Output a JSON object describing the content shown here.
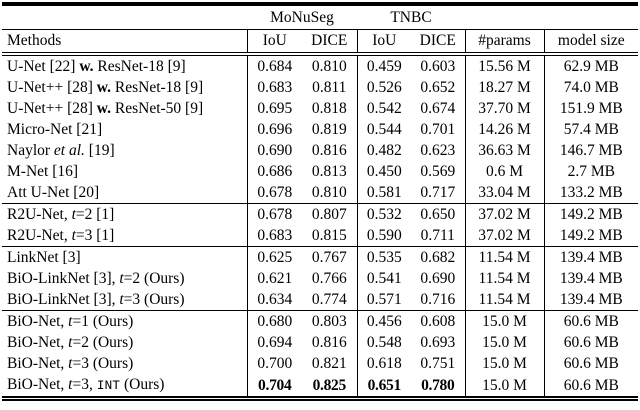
{
  "page": {
    "background_color": "#ffffff",
    "text_color": "#000000"
  },
  "table": {
    "datasets": [
      "MoNuSeg",
      "TNBC"
    ],
    "columns": {
      "methods": "Methods",
      "iou_monuseg": "IoU",
      "dice_monuseg": "DICE",
      "iou_tnbc": "IoU",
      "dice_tnbc": "DICE",
      "params": "#params",
      "model_size": "model size"
    },
    "rows": [
      {
        "method": [
          {
            "t": "U-Net [22] "
          },
          {
            "t": "w.",
            "s": "bold"
          },
          {
            "t": " ResNet-18 [9]"
          }
        ],
        "values": [
          "0.684",
          "0.810",
          "0.459",
          "0.603"
        ],
        "params": "15.56 M",
        "size": "62.9 MB",
        "bold_values": false,
        "group_start": false
      },
      {
        "method": [
          {
            "t": "U-Net++ [28] "
          },
          {
            "t": "w.",
            "s": "bold"
          },
          {
            "t": " ResNet-18 [9]"
          }
        ],
        "values": [
          "0.683",
          "0.811",
          "0.526",
          "0.652"
        ],
        "params": "18.27 M",
        "size": "74.0 MB",
        "bold_values": false,
        "group_start": false
      },
      {
        "method": [
          {
            "t": "U-Net++ [28] "
          },
          {
            "t": "w.",
            "s": "bold"
          },
          {
            "t": " ResNet-50 [9]"
          }
        ],
        "values": [
          "0.695",
          "0.818",
          "0.542",
          "0.674"
        ],
        "params": "37.70 M",
        "size": "151.9 MB",
        "bold_values": false,
        "group_start": false
      },
      {
        "method": [
          {
            "t": "Micro-Net [21]"
          }
        ],
        "values": [
          "0.696",
          "0.819",
          "0.544",
          "0.701"
        ],
        "params": "14.26 M",
        "size": "57.4 MB",
        "bold_values": false,
        "group_start": false
      },
      {
        "method": [
          {
            "t": "Naylor "
          },
          {
            "t": "et al.",
            "s": "italic"
          },
          {
            "t": " [19]"
          }
        ],
        "values": [
          "0.690",
          "0.816",
          "0.482",
          "0.623"
        ],
        "params": "36.63 M",
        "size": "146.7 MB",
        "bold_values": false,
        "group_start": false
      },
      {
        "method": [
          {
            "t": "M-Net [16]"
          }
        ],
        "values": [
          "0.686",
          "0.813",
          "0.450",
          "0.569"
        ],
        "params": "0.6 M",
        "size": "2.7 MB",
        "bold_values": false,
        "group_start": false
      },
      {
        "method": [
          {
            "t": "Att U-Net [20]"
          }
        ],
        "values": [
          "0.678",
          "0.810",
          "0.581",
          "0.717"
        ],
        "params": "33.04 M",
        "size": "133.2 MB",
        "bold_values": false,
        "group_start": false
      },
      {
        "method": [
          {
            "t": "R2U-Net, "
          },
          {
            "t": "t",
            "s": "italic"
          },
          {
            "t": "=2 [1]"
          }
        ],
        "values": [
          "0.678",
          "0.807",
          "0.532",
          "0.650"
        ],
        "params": "37.02 M",
        "size": "149.2 MB",
        "bold_values": false,
        "group_start": true
      },
      {
        "method": [
          {
            "t": "R2U-Net, "
          },
          {
            "t": "t",
            "s": "italic"
          },
          {
            "t": "=3 [1]"
          }
        ],
        "values": [
          "0.683",
          "0.815",
          "0.590",
          "0.711"
        ],
        "params": "37.02 M",
        "size": "149.2 MB",
        "bold_values": false,
        "group_start": false
      },
      {
        "method": [
          {
            "t": "LinkNet [3]"
          }
        ],
        "values": [
          "0.625",
          "0.767",
          "0.535",
          "0.682"
        ],
        "params": "11.54 M",
        "size": "139.4 MB",
        "bold_values": false,
        "group_start": true
      },
      {
        "method": [
          {
            "t": "BiO-LinkNet [3], "
          },
          {
            "t": "t",
            "s": "italic"
          },
          {
            "t": "=2 (Ours)"
          }
        ],
        "values": [
          "0.621",
          "0.766",
          "0.541",
          "0.690"
        ],
        "params": "11.54 M",
        "size": "139.4 MB",
        "bold_values": false,
        "group_start": false
      },
      {
        "method": [
          {
            "t": "BiO-LinkNet [3], "
          },
          {
            "t": "t",
            "s": "italic"
          },
          {
            "t": "=3 (Ours)"
          }
        ],
        "values": [
          "0.634",
          "0.774",
          "0.571",
          "0.716"
        ],
        "params": "11.54 M",
        "size": "139.4 MB",
        "bold_values": false,
        "group_start": false
      },
      {
        "method": [
          {
            "t": "BiO-Net, "
          },
          {
            "t": "t",
            "s": "italic"
          },
          {
            "t": "=1 (Ours)"
          }
        ],
        "values": [
          "0.680",
          "0.803",
          "0.456",
          "0.608"
        ],
        "params": "15.0 M",
        "size": "60.6 MB",
        "bold_values": false,
        "group_start": true
      },
      {
        "method": [
          {
            "t": "BiO-Net, "
          },
          {
            "t": "t",
            "s": "italic"
          },
          {
            "t": "=2 (Ours)"
          }
        ],
        "values": [
          "0.694",
          "0.816",
          "0.548",
          "0.693"
        ],
        "params": "15.0 M",
        "size": "60.6 MB",
        "bold_values": false,
        "group_start": false
      },
      {
        "method": [
          {
            "t": "BiO-Net, "
          },
          {
            "t": "t",
            "s": "italic"
          },
          {
            "t": "=3 (Ours)"
          }
        ],
        "values": [
          "0.700",
          "0.821",
          "0.618",
          "0.751"
        ],
        "params": "15.0 M",
        "size": "60.6 MB",
        "bold_values": false,
        "group_start": false
      },
      {
        "method": [
          {
            "t": "BiO-Net, "
          },
          {
            "t": "t",
            "s": "italic"
          },
          {
            "t": "=3, "
          },
          {
            "t": "INT",
            "s": "mono"
          },
          {
            "t": " (Ours)"
          }
        ],
        "values": [
          "0.704",
          "0.825",
          "0.651",
          "0.780"
        ],
        "params": "15.0 M",
        "size": "60.6 MB",
        "bold_values": true,
        "group_start": false
      }
    ]
  }
}
